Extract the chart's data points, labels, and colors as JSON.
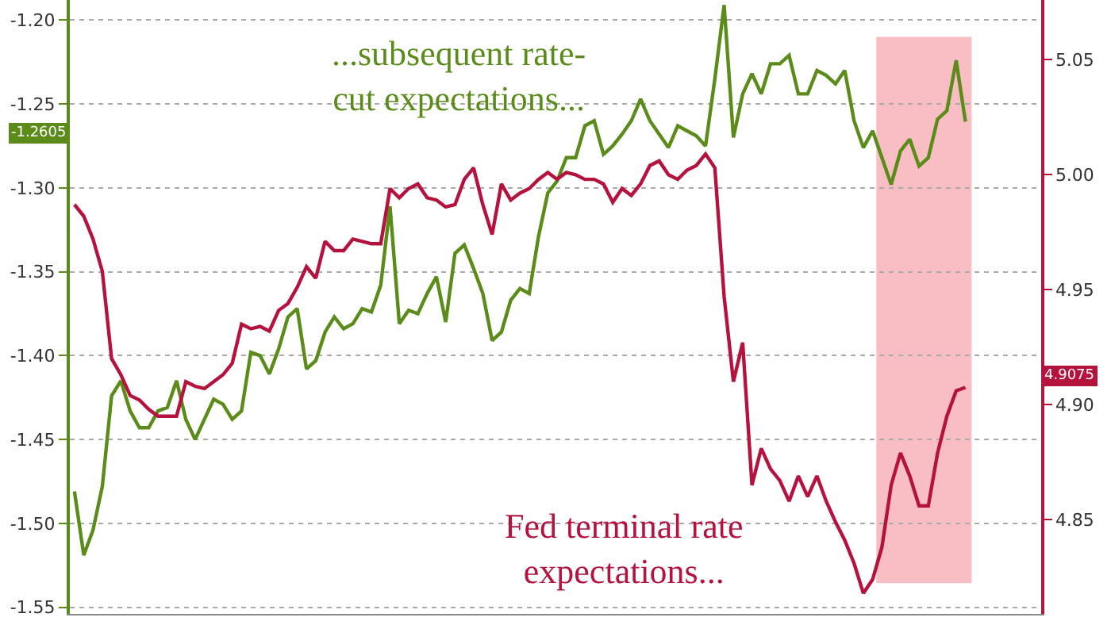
{
  "chart_data": {
    "type": "line",
    "categories": [
      null,
      null,
      null,
      null,
      null,
      null,
      null,
      null,
      null,
      null,
      null,
      null,
      null,
      null,
      null,
      null,
      null,
      null,
      null,
      null,
      null,
      null,
      null,
      null,
      null,
      null,
      null,
      null,
      null,
      null,
      null,
      null,
      null,
      null,
      null,
      null,
      null,
      null,
      null,
      null,
      null,
      null,
      null,
      null,
      null,
      null,
      null,
      null,
      null,
      null,
      null,
      null,
      null,
      null,
      null,
      null,
      null,
      null,
      null,
      null,
      null,
      null,
      null,
      null,
      null,
      null,
      null,
      null,
      null,
      null,
      null,
      null,
      null,
      null,
      null,
      null,
      null,
      null,
      null,
      null,
      null,
      null,
      null,
      null,
      null,
      null,
      null,
      null,
      null,
      null,
      null,
      null,
      null,
      null,
      null,
      null,
      null
    ],
    "series": [
      {
        "color": "#5b8c1a",
        "axis": "y",
        "values": [
          -1.481,
          -1.519,
          -1.504,
          -1.478,
          -1.424,
          -1.415,
          -1.433,
          -1.443,
          -1.443,
          -1.433,
          -1.431,
          -1.415,
          -1.438,
          -1.45,
          -1.438,
          -1.426,
          -1.429,
          -1.438,
          -1.433,
          -1.398,
          -1.4,
          -1.411,
          -1.396,
          -1.377,
          -1.372,
          -1.408,
          -1.403,
          -1.386,
          -1.377,
          -1.384,
          -1.381,
          -1.372,
          -1.374,
          -1.358,
          -1.311,
          -1.381,
          -1.373,
          -1.375,
          -1.363,
          -1.353,
          -1.38,
          -1.339,
          -1.334,
          -1.348,
          -1.363,
          -1.391,
          -1.386,
          -1.367,
          -1.36,
          -1.363,
          -1.329,
          -1.303,
          -1.296,
          -1.282,
          -1.282,
          -1.263,
          -1.26,
          -1.28,
          -1.275,
          -1.268,
          -1.26,
          -1.247,
          -1.26,
          -1.268,
          -1.276,
          -1.263,
          -1.266,
          -1.269,
          -1.275,
          -1.235,
          -1.191,
          -1.27,
          -1.244,
          -1.232,
          -1.244,
          -1.226,
          -1.226,
          -1.221,
          -1.244,
          -1.244,
          -1.23,
          -1.233,
          -1.238,
          -1.23,
          -1.26,
          -1.276,
          -1.266,
          -1.282,
          -1.298,
          -1.278,
          -1.271,
          -1.287,
          -1.282,
          -1.259,
          -1.254,
          -1.224,
          -1.2605
        ]
      },
      {
        "color": "#b5123e",
        "axis": "y2",
        "values": [
          4.987,
          4.982,
          4.972,
          4.958,
          4.92,
          4.913,
          4.904,
          4.902,
          4.898,
          4.895,
          4.895,
          4.895,
          4.91,
          4.908,
          4.907,
          4.91,
          4.913,
          4.918,
          4.935,
          4.933,
          4.934,
          4.932,
          4.941,
          4.944,
          4.951,
          4.96,
          4.955,
          4.971,
          4.967,
          4.967,
          4.972,
          4.971,
          4.97,
          4.97,
          4.994,
          4.99,
          4.994,
          4.996,
          4.99,
          4.989,
          4.986,
          4.987,
          4.998,
          5.003,
          4.987,
          4.974,
          4.996,
          4.989,
          4.992,
          4.994,
          4.998,
          5.001,
          4.998,
          5.001,
          5.0,
          4.998,
          4.998,
          4.996,
          4.988,
          4.994,
          4.991,
          4.996,
          5.004,
          5.006,
          5.0,
          4.998,
          5.002,
          5.004,
          5.009,
          5.003,
          4.947,
          4.91,
          4.927,
          4.865,
          4.881,
          4.872,
          4.867,
          4.858,
          4.869,
          4.86,
          4.869,
          4.858,
          4.849,
          4.841,
          4.831,
          4.818,
          4.824,
          4.838,
          4.865,
          4.879,
          4.869,
          4.856,
          4.856,
          4.879,
          4.895,
          4.906,
          4.9075
        ]
      }
    ],
    "ylim": [
      -1.554,
      -1.188
    ],
    "yticks": [
      -1.55,
      {
        "value": -1.5,
        "label": "-1.50"
      },
      -1.45,
      {
        "value": -1.4,
        "label": "-1.40"
      },
      -1.35,
      {
        "value": -1.3,
        "label": "-1.30"
      },
      -1.25,
      {
        "value": -1.2,
        "label": "-1.20"
      }
    ],
    "y2lim": [
      4.809,
      5.076
    ],
    "y2ticks": [
      4.85,
      {
        "value": 4.9,
        "label": "4.90"
      },
      4.95,
      {
        "value": 5.0,
        "label": "5.00"
      },
      5.05
    ],
    "annotations": [
      "...subsequent rate-\ncut expectations...",
      "Fed terminal rate\nexpectations...",
      "-1.2605",
      "4.9075"
    ],
    "grid": "y",
    "marker": "none",
    "line_style": "solid"
  }
}
